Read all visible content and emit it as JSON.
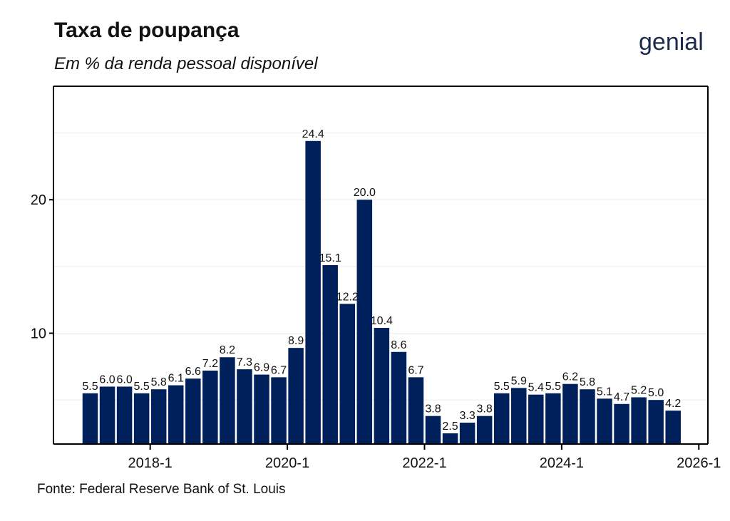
{
  "header": {
    "title": "Taxa de poupança",
    "subtitle": "Em % da renda pessoal disponível"
  },
  "logo": {
    "text": "genial"
  },
  "footer": {
    "source": "Fonte: Federal Reserve Bank of St. Louis"
  },
  "colors": {
    "bar": "#00205b",
    "axis": "#000000",
    "grid": "#ececec",
    "text": "#111111",
    "logo": "#1c2a4e"
  },
  "chart_data": {
    "type": "bar",
    "title": "Taxa de poupança",
    "subtitle": "Em % da renda pessoal disponível",
    "xlabel": "",
    "ylabel": "",
    "x_unit": "quarter",
    "x_start": "2017-1",
    "x_ticks": [
      "2018-1",
      "2020-1",
      "2022-1",
      "2024-1",
      "2026-1"
    ],
    "y_ticks": [
      10,
      20
    ],
    "ylim": [
      1.7,
      28.5
    ],
    "values": [
      5.5,
      6.0,
      6.0,
      5.5,
      5.8,
      6.1,
      6.6,
      7.2,
      8.2,
      7.3,
      6.9,
      6.7,
      8.9,
      24.4,
      15.1,
      12.2,
      20.0,
      10.4,
      8.6,
      6.7,
      3.8,
      2.5,
      3.3,
      3.8,
      5.5,
      5.9,
      5.4,
      5.5,
      6.2,
      5.8,
      5.1,
      4.7,
      5.2,
      5.0,
      4.2
    ],
    "labels": [
      "5.5",
      "6.0",
      "6.0",
      "5.5",
      "5.8",
      "6.1",
      "6.6",
      "7.2",
      "8.2",
      "7.3",
      "6.9",
      "6.7",
      "8.9",
      "24.4",
      "15.1",
      "12.2",
      "20.0",
      "10.4",
      "8.6",
      "6.7",
      "3.8",
      "2.5",
      "3.3",
      "3.8",
      "5.5",
      "5.9",
      "5.4",
      "5.5",
      "6.2",
      "5.8",
      "5.1",
      "4.7",
      "5.2",
      "5.0",
      "4.2"
    ],
    "grid": true,
    "legend": "none"
  }
}
